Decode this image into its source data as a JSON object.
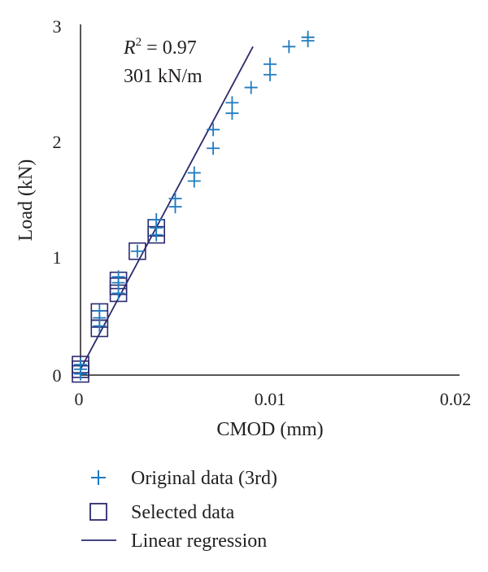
{
  "chart_data": {
    "type": "scatter",
    "xlabel": "CMOD (mm)",
    "ylabel": "Load (kN)",
    "xlim": [
      0,
      0.02
    ],
    "ylim": [
      0,
      3
    ],
    "xticks": [
      {
        "value": 0,
        "label": "0"
      },
      {
        "value": 0.01,
        "label": "0.01"
      },
      {
        "value": 0.02,
        "label": "0.02"
      }
    ],
    "yticks": [
      {
        "value": 0,
        "label": "0"
      },
      {
        "value": 1,
        "label": "1"
      },
      {
        "value": 2,
        "label": "2"
      },
      {
        "value": 3,
        "label": "3"
      }
    ],
    "annotations": {
      "r2_symbol": "R",
      "r2_superscript": "2",
      "r2_value": " = 0.97",
      "stiffness": "301 kN/m"
    },
    "legend_position": "bottom",
    "series": [
      {
        "name": "Original data (3rd)",
        "marker": "plus",
        "color": "#1f7bc1",
        "points": [
          [
            0.0,
            0.01
          ],
          [
            0.0,
            0.05
          ],
          [
            0.0,
            0.09
          ],
          [
            0.001,
            0.42
          ],
          [
            0.001,
            0.49
          ],
          [
            0.001,
            0.55
          ],
          [
            0.002,
            0.7
          ],
          [
            0.002,
            0.79
          ],
          [
            0.002,
            0.84
          ],
          [
            0.003,
            1.06
          ],
          [
            0.004,
            1.2
          ],
          [
            0.004,
            1.26
          ],
          [
            0.004,
            1.33
          ],
          [
            0.005,
            1.44
          ],
          [
            0.005,
            1.51
          ],
          [
            0.006,
            1.66
          ],
          [
            0.006,
            1.73
          ],
          [
            0.007,
            1.94
          ],
          [
            0.007,
            2.1
          ],
          [
            0.008,
            2.24
          ],
          [
            0.008,
            2.33
          ],
          [
            0.009,
            2.46
          ],
          [
            0.01,
            2.57
          ],
          [
            0.01,
            2.66
          ],
          [
            0.011,
            2.81
          ],
          [
            0.012,
            2.86
          ],
          [
            0.012,
            2.89
          ]
        ]
      },
      {
        "name": "Selected data",
        "marker": "square",
        "color": "#2b2a6e",
        "points": [
          [
            0.0,
            0.01
          ],
          [
            0.0,
            0.05
          ],
          [
            0.0,
            0.09
          ],
          [
            0.001,
            0.4
          ],
          [
            0.001,
            0.48
          ],
          [
            0.001,
            0.54
          ],
          [
            0.002,
            0.7
          ],
          [
            0.002,
            0.76
          ],
          [
            0.002,
            0.81
          ],
          [
            0.003,
            1.06
          ],
          [
            0.004,
            1.2
          ],
          [
            0.004,
            1.26
          ]
        ]
      },
      {
        "name": "Linear regression",
        "marker": "line",
        "color": "#2b2a6e",
        "points": [
          [
            0.0,
            0.05
          ],
          [
            0.0091,
            2.81
          ]
        ]
      }
    ]
  }
}
